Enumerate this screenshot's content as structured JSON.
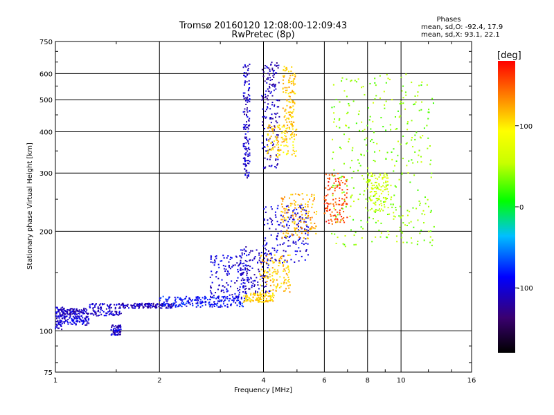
{
  "header": {
    "title_line1": "Tromsø 20160120 12:08:00-12:09:43",
    "title_line2": "RwPretec (8p)"
  },
  "stats": {
    "heading": "Phases",
    "line_o": "mean, sd,O: -92.4, 17.9",
    "line_x": "mean, sd,X:  93.1, 22.1"
  },
  "colorbar": {
    "unit_label": "[deg]",
    "ticks": [
      {
        "value": 100,
        "label": "100"
      },
      {
        "value": 0,
        "label": "0"
      },
      {
        "value": -100,
        "label": "-100"
      }
    ],
    "range": [
      -180,
      180
    ]
  },
  "chart_data": {
    "type": "scatter",
    "xlabel": "Frequency [MHz]",
    "ylabel": "Stationary phase Virtual Height [km]",
    "x_scale": "log",
    "y_scale": "log",
    "xlim": [
      1,
      16
    ],
    "ylim": [
      75,
      750
    ],
    "x_ticks": [
      {
        "value": 1,
        "label": "1"
      },
      {
        "value": 2,
        "label": "2"
      },
      {
        "value": 4,
        "label": "4"
      },
      {
        "value": 6,
        "label": "6"
      },
      {
        "value": 8,
        "label": "8"
      },
      {
        "value": 10,
        "label": "10"
      },
      {
        "value": 16,
        "label": "16"
      }
    ],
    "y_ticks": [
      {
        "value": 75,
        "label": "75"
      },
      {
        "value": 100,
        "label": "100"
      },
      {
        "value": 200,
        "label": "200"
      },
      {
        "value": 300,
        "label": "300"
      },
      {
        "value": 400,
        "label": "400"
      },
      {
        "value": 500,
        "label": "500"
      },
      {
        "value": 600,
        "label": "600"
      },
      {
        "value": 750,
        "label": "750"
      }
    ],
    "grid": true,
    "color_variable": "phase [deg]",
    "groups": [
      {
        "x_range": [
          1.0,
          1.05
        ],
        "y_range": [
          101,
          118
        ],
        "phase": -105
      },
      {
        "x_range": [
          1.05,
          1.25
        ],
        "y_range": [
          112,
          117
        ],
        "phase": -110
      },
      {
        "x_range": [
          1.05,
          1.25
        ],
        "y_range": [
          104,
          111
        ],
        "phase": -100
      },
      {
        "x_range": [
          1.25,
          1.55
        ],
        "y_range": [
          111,
          121
        ],
        "phase": -105
      },
      {
        "x_range": [
          1.45,
          1.55
        ],
        "y_range": [
          97,
          104
        ],
        "phase": -105
      },
      {
        "x_range": [
          1.55,
          2.2
        ],
        "y_range": [
          117,
          121
        ],
        "phase": -110
      },
      {
        "x_range": [
          2.0,
          3.5
        ],
        "y_range": [
          118,
          127
        ],
        "phase": -85
      },
      {
        "x_range": [
          2.8,
          3.6
        ],
        "y_range": [
          122,
          170
        ],
        "phase": -100
      },
      {
        "x_range": [
          3.5,
          4.3
        ],
        "y_range": [
          122,
          130
        ],
        "phase": 110
      },
      {
        "x_range": [
          3.4,
          4.2
        ],
        "y_range": [
          130,
          180
        ],
        "phase": -105
      },
      {
        "x_range": [
          3.9,
          4.8
        ],
        "y_range": [
          130,
          170
        ],
        "phase": 115
      },
      {
        "x_range": [
          4.0,
          5.4
        ],
        "y_range": [
          160,
          240
        ],
        "phase": -100
      },
      {
        "x_range": [
          4.5,
          5.7
        ],
        "y_range": [
          190,
          260
        ],
        "phase": 120
      },
      {
        "x_range": [
          3.5,
          3.65
        ],
        "y_range": [
          290,
          640
        ],
        "phase": -105
      },
      {
        "x_range": [
          3.95,
          4.45
        ],
        "y_range": [
          310,
          650
        ],
        "phase": -110
      },
      {
        "x_range": [
          4.1,
          5.0
        ],
        "y_range": [
          335,
          420
        ],
        "phase": 110
      },
      {
        "x_range": [
          4.55,
          4.95
        ],
        "y_range": [
          400,
          630
        ],
        "phase": 115
      },
      {
        "x_range": [
          6.0,
          7.0
        ],
        "y_range": [
          210,
          300
        ],
        "phase": 160
      },
      {
        "x_range": [
          8.0,
          9.2
        ],
        "y_range": [
          230,
          300
        ],
        "phase": 60
      },
      {
        "x_range": [
          6.3,
          12.5
        ],
        "y_range": [
          180,
          600
        ],
        "phase": 40
      }
    ]
  }
}
